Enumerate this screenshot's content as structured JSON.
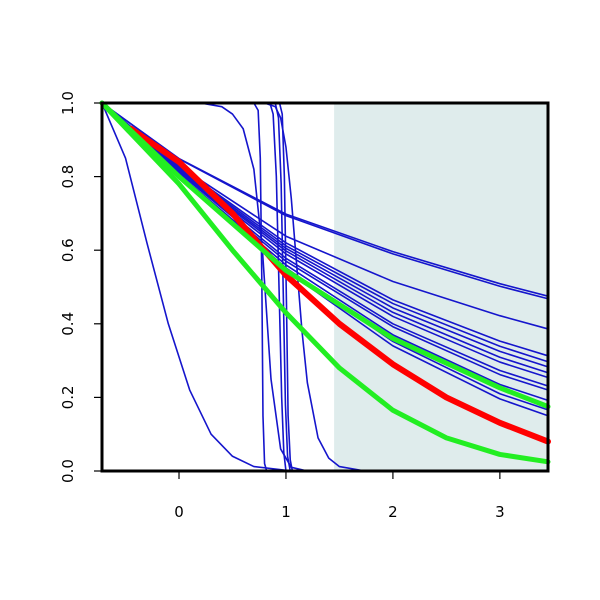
{
  "chart_data": {
    "type": "line",
    "title": "",
    "xlabel": "",
    "ylabel": "",
    "xlim": [
      -0.72,
      3.45
    ],
    "ylim": [
      0.0,
      1.0
    ],
    "x_ticks": [
      0,
      1,
      2,
      3
    ],
    "x_tick_labels": [
      "0",
      "1",
      "2",
      "3"
    ],
    "y_ticks": [
      0.0,
      0.2,
      0.4,
      0.6,
      0.8,
      1.0
    ],
    "y_tick_labels": [
      "0.0",
      "0.2",
      "0.4",
      "0.6",
      "0.8",
      "1.0"
    ],
    "grid": false,
    "shaded_region": {
      "x_from": 1.45,
      "x_to": 3.45,
      "color": "#dfecec"
    },
    "series_colors": {
      "blue": "#1515cc",
      "red": "#ff0000",
      "green": "#22ee22"
    },
    "series": [
      {
        "color": "blue",
        "points": [
          [
            -0.72,
            1.0
          ],
          [
            0.0,
            0.849
          ],
          [
            1.0,
            0.698
          ],
          [
            2.0,
            0.596
          ],
          [
            3.0,
            0.509
          ],
          [
            3.45,
            0.475
          ]
        ]
      },
      {
        "color": "blue",
        "points": [
          [
            -0.72,
            1.0
          ],
          [
            0.0,
            0.848
          ],
          [
            1.0,
            0.694
          ],
          [
            2.0,
            0.59
          ],
          [
            3.0,
            0.502
          ],
          [
            3.45,
            0.468
          ]
        ]
      },
      {
        "color": "blue",
        "points": [
          [
            -0.72,
            1.0
          ],
          [
            0.0,
            0.829
          ],
          [
            1.0,
            0.638
          ],
          [
            2.0,
            0.515
          ],
          [
            3.0,
            0.422
          ],
          [
            3.45,
            0.386
          ]
        ]
      },
      {
        "color": "blue",
        "points": [
          [
            -0.72,
            1.0
          ],
          [
            0.0,
            0.827
          ],
          [
            1.0,
            0.62
          ],
          [
            2.0,
            0.465
          ],
          [
            3.0,
            0.353
          ],
          [
            3.45,
            0.313
          ]
        ]
      },
      {
        "color": "blue",
        "points": [
          [
            -0.72,
            1.0
          ],
          [
            0.0,
            0.825
          ],
          [
            1.0,
            0.612
          ],
          [
            2.0,
            0.455
          ],
          [
            3.0,
            0.339
          ],
          [
            3.45,
            0.297
          ]
        ]
      },
      {
        "color": "blue",
        "points": [
          [
            -0.72,
            1.0
          ],
          [
            0.0,
            0.822
          ],
          [
            1.0,
            0.605
          ],
          [
            2.0,
            0.443
          ],
          [
            3.0,
            0.325
          ],
          [
            3.45,
            0.283
          ]
        ]
      },
      {
        "color": "blue",
        "points": [
          [
            -0.72,
            1.0
          ],
          [
            0.0,
            0.82
          ],
          [
            1.0,
            0.598
          ],
          [
            2.0,
            0.431
          ],
          [
            3.0,
            0.309
          ],
          [
            3.45,
            0.267
          ]
        ]
      },
      {
        "color": "blue",
        "points": [
          [
            -0.72,
            1.0
          ],
          [
            0.0,
            0.817
          ],
          [
            1.0,
            0.59
          ],
          [
            2.0,
            0.42
          ],
          [
            3.0,
            0.296
          ],
          [
            3.45,
            0.254
          ]
        ]
      },
      {
        "color": "blue",
        "points": [
          [
            -0.72,
            1.0
          ],
          [
            0.0,
            0.814
          ],
          [
            1.0,
            0.578
          ],
          [
            2.0,
            0.4
          ],
          [
            3.0,
            0.273
          ],
          [
            3.45,
            0.231
          ]
        ]
      },
      {
        "color": "blue",
        "points": [
          [
            -0.72,
            1.0
          ],
          [
            0.0,
            0.811
          ],
          [
            1.0,
            0.57
          ],
          [
            2.0,
            0.392
          ],
          [
            3.0,
            0.262
          ],
          [
            3.45,
            0.22
          ]
        ]
      },
      {
        "color": "blue",
        "points": [
          [
            -0.72,
            1.0
          ],
          [
            0.0,
            0.806
          ],
          [
            1.0,
            0.56
          ],
          [
            2.0,
            0.37
          ],
          [
            3.0,
            0.235
          ],
          [
            3.45,
            0.192
          ]
        ]
      },
      {
        "color": "blue",
        "points": [
          [
            -0.72,
            1.0
          ],
          [
            0.0,
            0.802
          ],
          [
            1.0,
            0.552
          ],
          [
            2.0,
            0.352
          ],
          [
            3.0,
            0.21
          ],
          [
            3.45,
            0.166
          ]
        ]
      },
      {
        "color": "blue",
        "points": [
          [
            -0.72,
            1.0
          ],
          [
            0.0,
            0.798
          ],
          [
            1.0,
            0.545
          ],
          [
            2.0,
            0.34
          ],
          [
            3.0,
            0.196
          ],
          [
            3.45,
            0.15
          ]
        ]
      },
      {
        "color": "blue",
        "points": [
          [
            -0.72,
            1.0
          ],
          [
            -0.5,
            0.85
          ],
          [
            -0.3,
            0.62
          ],
          [
            -0.1,
            0.4
          ],
          [
            0.1,
            0.22
          ],
          [
            0.3,
            0.1
          ],
          [
            0.5,
            0.04
          ],
          [
            0.7,
            0.012
          ],
          [
            1.0,
            0.002
          ],
          [
            1.5,
            0.0
          ],
          [
            3.45,
            0.0
          ]
        ]
      },
      {
        "color": "blue",
        "points": [
          [
            -0.72,
            1.0
          ],
          [
            0.2,
            1.0
          ],
          [
            0.4,
            0.99
          ],
          [
            0.5,
            0.97
          ],
          [
            0.6,
            0.93
          ],
          [
            0.7,
            0.82
          ],
          [
            0.78,
            0.6
          ],
          [
            0.86,
            0.25
          ],
          [
            0.95,
            0.06
          ],
          [
            1.05,
            0.01
          ],
          [
            1.2,
            0.0
          ],
          [
            3.45,
            0.0
          ]
        ]
      },
      {
        "color": "blue",
        "points": [
          [
            -0.72,
            1.0
          ],
          [
            0.7,
            1.0
          ],
          [
            0.74,
            0.98
          ],
          [
            0.76,
            0.85
          ],
          [
            0.775,
            0.5
          ],
          [
            0.785,
            0.15
          ],
          [
            0.8,
            0.02
          ],
          [
            0.82,
            0.0
          ],
          [
            3.45,
            0.0
          ]
        ]
      },
      {
        "color": "blue",
        "points": [
          [
            -0.72,
            1.0
          ],
          [
            0.85,
            1.0
          ],
          [
            0.88,
            0.97
          ],
          [
            0.91,
            0.8
          ],
          [
            0.935,
            0.5
          ],
          [
            0.96,
            0.2
          ],
          [
            0.98,
            0.05
          ],
          [
            1.0,
            0.0
          ],
          [
            3.45,
            0.0
          ]
        ]
      },
      {
        "color": "blue",
        "points": [
          [
            -0.72,
            1.0
          ],
          [
            0.9,
            1.0
          ],
          [
            0.93,
            0.96
          ],
          [
            0.955,
            0.78
          ],
          [
            0.975,
            0.48
          ],
          [
            0.995,
            0.18
          ],
          [
            1.015,
            0.04
          ],
          [
            1.04,
            0.0
          ],
          [
            3.45,
            0.0
          ]
        ]
      },
      {
        "color": "blue",
        "points": [
          [
            -0.72,
            1.0
          ],
          [
            0.94,
            1.0
          ],
          [
            0.965,
            0.97
          ],
          [
            0.985,
            0.8
          ],
          [
            1.005,
            0.45
          ],
          [
            1.02,
            0.15
          ],
          [
            1.04,
            0.03
          ],
          [
            1.06,
            0.0
          ],
          [
            3.45,
            0.0
          ]
        ]
      },
      {
        "color": "blue",
        "points": [
          [
            -0.72,
            1.0
          ],
          [
            0.8,
            1.0
          ],
          [
            0.9,
            0.99
          ],
          [
            0.95,
            0.96
          ],
          [
            1.0,
            0.88
          ],
          [
            1.05,
            0.74
          ],
          [
            1.1,
            0.56
          ],
          [
            1.15,
            0.38
          ],
          [
            1.2,
            0.24
          ],
          [
            1.3,
            0.09
          ],
          [
            1.4,
            0.035
          ],
          [
            1.5,
            0.012
          ],
          [
            1.7,
            0.002
          ],
          [
            2.0,
            0.0
          ],
          [
            3.45,
            0.0
          ]
        ]
      },
      {
        "color": "red",
        "points": [
          [
            -0.45,
            0.93
          ],
          [
            0.0,
            0.84
          ],
          [
            0.5,
            0.7
          ],
          [
            1.0,
            0.532
          ],
          [
            1.5,
            0.4
          ],
          [
            2.0,
            0.29
          ],
          [
            2.5,
            0.2
          ],
          [
            3.0,
            0.131
          ],
          [
            3.45,
            0.08
          ]
        ]
      },
      {
        "color": "green",
        "points": [
          [
            -0.72,
            1.0
          ],
          [
            0.0,
            0.8
          ],
          [
            1.0,
            0.545
          ],
          [
            2.0,
            0.36
          ],
          [
            3.0,
            0.226
          ],
          [
            3.45,
            0.175
          ]
        ]
      },
      {
        "color": "green",
        "points": [
          [
            -0.72,
            1.0
          ],
          [
            0.0,
            0.78
          ],
          [
            0.5,
            0.6
          ],
          [
            1.0,
            0.43
          ],
          [
            1.5,
            0.28
          ],
          [
            2.0,
            0.165
          ],
          [
            2.5,
            0.09
          ],
          [
            3.0,
            0.045
          ],
          [
            3.45,
            0.025
          ]
        ]
      }
    ]
  }
}
